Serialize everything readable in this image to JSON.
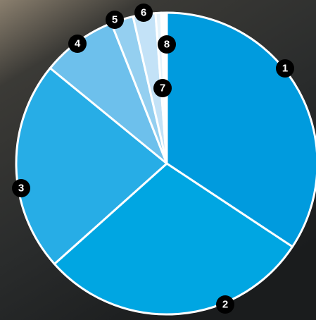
{
  "chart_data": {
    "type": "pie",
    "categories": [
      "1",
      "2",
      "3",
      "4",
      "5",
      "6",
      "7",
      "8"
    ],
    "values": [
      34.3,
      29.1,
      22.5,
      8.1,
      2.4,
      2.4,
      0.6,
      0.6
    ],
    "colors": [
      "#009bde",
      "#00a6e2",
      "#27ade6",
      "#6dc0ec",
      "#94cff0",
      "#c3e2f7",
      "#e6f3fb",
      "#ffffff"
    ]
  }
}
